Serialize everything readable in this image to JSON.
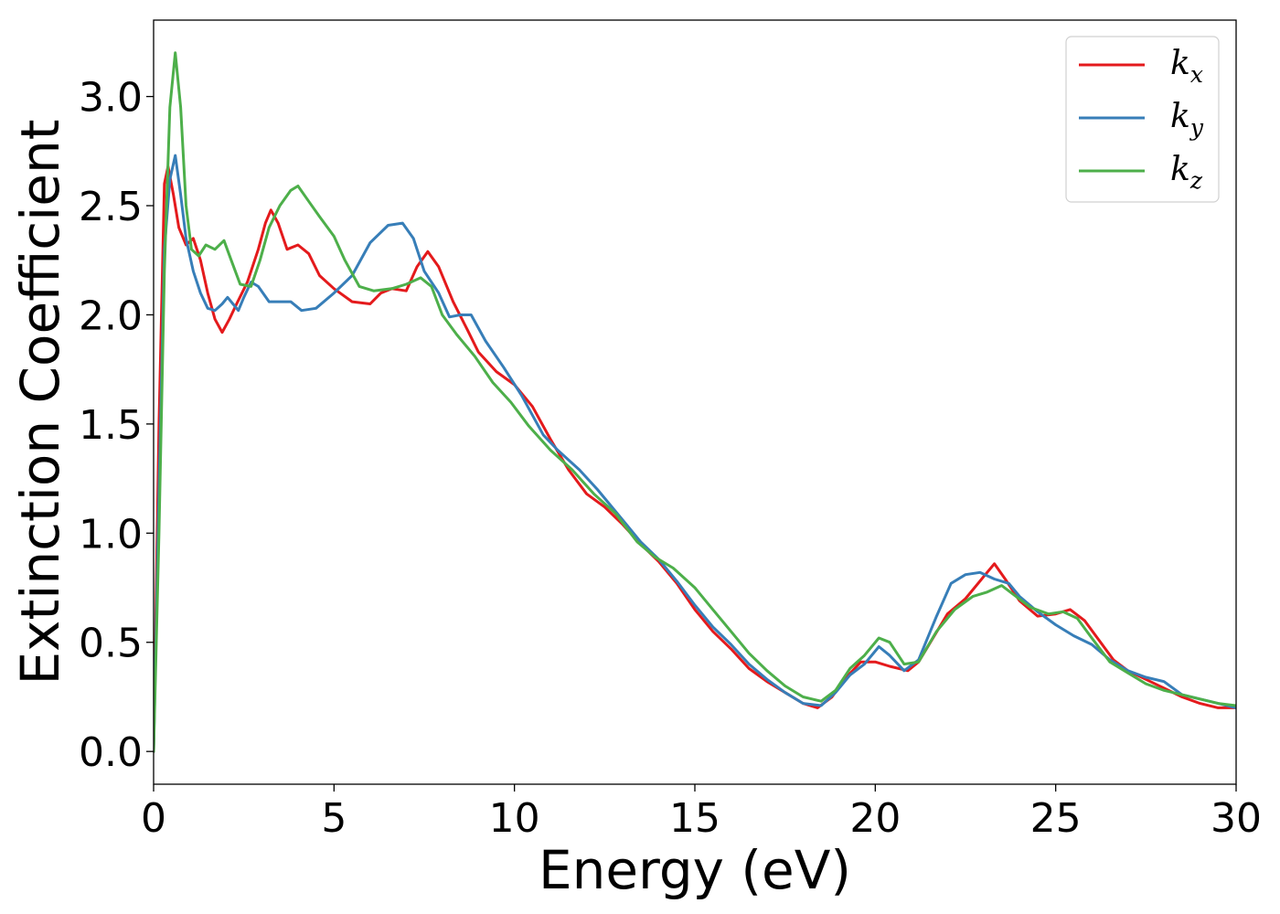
{
  "chart_data": {
    "type": "line",
    "xlabel": "Energy (eV)",
    "ylabel": "Extinction Coefficient",
    "xlim": [
      0,
      30
    ],
    "ylim": [
      -0.15,
      3.35
    ],
    "xticks": [
      0,
      5,
      10,
      15,
      20,
      25,
      30
    ],
    "xtick_labels": [
      "0",
      "5",
      "10",
      "15",
      "20",
      "25",
      "30"
    ],
    "yticks": [
      0.0,
      0.5,
      1.0,
      1.5,
      2.0,
      2.5,
      3.0
    ],
    "ytick_labels": [
      "0.0",
      "0.5",
      "1.0",
      "1.5",
      "2.0",
      "2.5",
      "3.0"
    ],
    "grid": false,
    "legend_position": "top-right",
    "series": [
      {
        "name": "k",
        "subscript": "x",
        "color": "#e41a1c",
        "points": [
          [
            0,
            0.0
          ],
          [
            0.15,
            1.5
          ],
          [
            0.3,
            2.6
          ],
          [
            0.4,
            2.68
          ],
          [
            0.55,
            2.55
          ],
          [
            0.7,
            2.4
          ],
          [
            0.9,
            2.32
          ],
          [
            1.1,
            2.35
          ],
          [
            1.3,
            2.25
          ],
          [
            1.5,
            2.1
          ],
          [
            1.7,
            1.98
          ],
          [
            1.9,
            1.92
          ],
          [
            2.1,
            1.98
          ],
          [
            2.3,
            2.05
          ],
          [
            2.6,
            2.15
          ],
          [
            2.9,
            2.3
          ],
          [
            3.1,
            2.42
          ],
          [
            3.25,
            2.48
          ],
          [
            3.45,
            2.42
          ],
          [
            3.7,
            2.3
          ],
          [
            4.0,
            2.32
          ],
          [
            4.3,
            2.28
          ],
          [
            4.6,
            2.18
          ],
          [
            5.0,
            2.12
          ],
          [
            5.5,
            2.06
          ],
          [
            6.0,
            2.05
          ],
          [
            6.3,
            2.1
          ],
          [
            6.6,
            2.12
          ],
          [
            7.0,
            2.11
          ],
          [
            7.3,
            2.22
          ],
          [
            7.6,
            2.29
          ],
          [
            7.9,
            2.22
          ],
          [
            8.3,
            2.06
          ],
          [
            8.7,
            1.93
          ],
          [
            9.0,
            1.83
          ],
          [
            9.5,
            1.74
          ],
          [
            10.0,
            1.68
          ],
          [
            10.5,
            1.58
          ],
          [
            11.0,
            1.43
          ],
          [
            11.5,
            1.29
          ],
          [
            12.0,
            1.18
          ],
          [
            12.5,
            1.12
          ],
          [
            13.0,
            1.04
          ],
          [
            13.5,
            0.95
          ],
          [
            14.0,
            0.87
          ],
          [
            14.5,
            0.77
          ],
          [
            15.0,
            0.65
          ],
          [
            15.5,
            0.55
          ],
          [
            16.0,
            0.47
          ],
          [
            16.5,
            0.38
          ],
          [
            17.0,
            0.32
          ],
          [
            17.5,
            0.27
          ],
          [
            18.0,
            0.22
          ],
          [
            18.4,
            0.2
          ],
          [
            18.8,
            0.25
          ],
          [
            19.2,
            0.34
          ],
          [
            19.6,
            0.41
          ],
          [
            20.0,
            0.41
          ],
          [
            20.4,
            0.39
          ],
          [
            20.9,
            0.37
          ],
          [
            21.2,
            0.41
          ],
          [
            21.6,
            0.52
          ],
          [
            22.0,
            0.63
          ],
          [
            22.5,
            0.7
          ],
          [
            23.0,
            0.8
          ],
          [
            23.3,
            0.86
          ],
          [
            23.6,
            0.79
          ],
          [
            24.0,
            0.69
          ],
          [
            24.5,
            0.62
          ],
          [
            25.0,
            0.63
          ],
          [
            25.4,
            0.65
          ],
          [
            25.8,
            0.6
          ],
          [
            26.2,
            0.51
          ],
          [
            26.6,
            0.42
          ],
          [
            27.0,
            0.37
          ],
          [
            27.5,
            0.33
          ],
          [
            28.0,
            0.29
          ],
          [
            28.5,
            0.25
          ],
          [
            29.0,
            0.22
          ],
          [
            29.5,
            0.2
          ],
          [
            30.0,
            0.2
          ]
        ]
      },
      {
        "name": "k",
        "subscript": "y",
        "color": "#377eb8",
        "points": [
          [
            0,
            0.0
          ],
          [
            0.15,
            1.2
          ],
          [
            0.3,
            2.3
          ],
          [
            0.45,
            2.62
          ],
          [
            0.6,
            2.73
          ],
          [
            0.75,
            2.55
          ],
          [
            0.9,
            2.35
          ],
          [
            1.1,
            2.2
          ],
          [
            1.3,
            2.1
          ],
          [
            1.5,
            2.03
          ],
          [
            1.7,
            2.02
          ],
          [
            1.9,
            2.05
          ],
          [
            2.05,
            2.08
          ],
          [
            2.2,
            2.05
          ],
          [
            2.35,
            2.02
          ],
          [
            2.5,
            2.08
          ],
          [
            2.7,
            2.15
          ],
          [
            2.9,
            2.13
          ],
          [
            3.2,
            2.06
          ],
          [
            3.5,
            2.06
          ],
          [
            3.8,
            2.06
          ],
          [
            4.1,
            2.02
          ],
          [
            4.5,
            2.03
          ],
          [
            5.0,
            2.1
          ],
          [
            5.5,
            2.18
          ],
          [
            6.0,
            2.33
          ],
          [
            6.5,
            2.41
          ],
          [
            6.9,
            2.42
          ],
          [
            7.2,
            2.35
          ],
          [
            7.5,
            2.2
          ],
          [
            7.9,
            2.1
          ],
          [
            8.2,
            1.99
          ],
          [
            8.5,
            2.0
          ],
          [
            8.8,
            2.0
          ],
          [
            9.2,
            1.88
          ],
          [
            9.7,
            1.76
          ],
          [
            10.2,
            1.63
          ],
          [
            10.8,
            1.45
          ],
          [
            11.2,
            1.38
          ],
          [
            11.8,
            1.29
          ],
          [
            12.3,
            1.2
          ],
          [
            13.0,
            1.06
          ],
          [
            13.5,
            0.96
          ],
          [
            14.0,
            0.88
          ],
          [
            14.5,
            0.78
          ],
          [
            15.0,
            0.67
          ],
          [
            15.5,
            0.57
          ],
          [
            16.0,
            0.49
          ],
          [
            16.5,
            0.4
          ],
          [
            17.0,
            0.33
          ],
          [
            17.5,
            0.27
          ],
          [
            18.0,
            0.22
          ],
          [
            18.5,
            0.21
          ],
          [
            18.9,
            0.27
          ],
          [
            19.3,
            0.35
          ],
          [
            19.7,
            0.4
          ],
          [
            20.1,
            0.48
          ],
          [
            20.4,
            0.44
          ],
          [
            20.8,
            0.37
          ],
          [
            21.2,
            0.42
          ],
          [
            21.7,
            0.62
          ],
          [
            22.1,
            0.77
          ],
          [
            22.5,
            0.81
          ],
          [
            22.9,
            0.82
          ],
          [
            23.3,
            0.79
          ],
          [
            23.7,
            0.77
          ],
          [
            24.0,
            0.71
          ],
          [
            24.5,
            0.64
          ],
          [
            25.0,
            0.58
          ],
          [
            25.5,
            0.53
          ],
          [
            26.0,
            0.49
          ],
          [
            26.5,
            0.42
          ],
          [
            27.0,
            0.37
          ],
          [
            27.5,
            0.34
          ],
          [
            28.0,
            0.32
          ],
          [
            28.5,
            0.26
          ],
          [
            29.0,
            0.24
          ],
          [
            29.5,
            0.22
          ],
          [
            30.0,
            0.2
          ]
        ]
      },
      {
        "name": "k",
        "subscript": "z",
        "color": "#4daf4a",
        "points": [
          [
            0,
            0.0
          ],
          [
            0.15,
            1.0
          ],
          [
            0.3,
            2.2
          ],
          [
            0.45,
            2.95
          ],
          [
            0.6,
            3.2
          ],
          [
            0.75,
            2.95
          ],
          [
            0.9,
            2.5
          ],
          [
            1.05,
            2.3
          ],
          [
            1.25,
            2.27
          ],
          [
            1.45,
            2.32
          ],
          [
            1.7,
            2.3
          ],
          [
            1.95,
            2.34
          ],
          [
            2.15,
            2.25
          ],
          [
            2.4,
            2.14
          ],
          [
            2.7,
            2.13
          ],
          [
            2.95,
            2.25
          ],
          [
            3.2,
            2.4
          ],
          [
            3.5,
            2.5
          ],
          [
            3.8,
            2.57
          ],
          [
            4.0,
            2.59
          ],
          [
            4.3,
            2.52
          ],
          [
            4.6,
            2.45
          ],
          [
            5.0,
            2.36
          ],
          [
            5.3,
            2.25
          ],
          [
            5.7,
            2.13
          ],
          [
            6.1,
            2.11
          ],
          [
            6.6,
            2.12
          ],
          [
            7.0,
            2.14
          ],
          [
            7.4,
            2.17
          ],
          [
            7.7,
            2.13
          ],
          [
            8.0,
            2.0
          ],
          [
            8.4,
            1.91
          ],
          [
            8.9,
            1.81
          ],
          [
            9.4,
            1.69
          ],
          [
            9.9,
            1.6
          ],
          [
            10.4,
            1.49
          ],
          [
            11.0,
            1.38
          ],
          [
            11.6,
            1.29
          ],
          [
            12.2,
            1.18
          ],
          [
            12.8,
            1.09
          ],
          [
            13.4,
            0.96
          ],
          [
            13.9,
            0.89
          ],
          [
            14.4,
            0.84
          ],
          [
            15.0,
            0.75
          ],
          [
            15.5,
            0.65
          ],
          [
            16.0,
            0.55
          ],
          [
            16.5,
            0.45
          ],
          [
            17.0,
            0.37
          ],
          [
            17.5,
            0.3
          ],
          [
            18.0,
            0.25
          ],
          [
            18.5,
            0.23
          ],
          [
            18.9,
            0.28
          ],
          [
            19.3,
            0.38
          ],
          [
            19.7,
            0.44
          ],
          [
            20.1,
            0.52
          ],
          [
            20.4,
            0.5
          ],
          [
            20.8,
            0.4
          ],
          [
            21.2,
            0.41
          ],
          [
            21.7,
            0.55
          ],
          [
            22.2,
            0.65
          ],
          [
            22.7,
            0.71
          ],
          [
            23.1,
            0.73
          ],
          [
            23.5,
            0.76
          ],
          [
            23.9,
            0.71
          ],
          [
            24.3,
            0.66
          ],
          [
            24.8,
            0.63
          ],
          [
            25.2,
            0.64
          ],
          [
            25.6,
            0.61
          ],
          [
            26.0,
            0.52
          ],
          [
            26.5,
            0.41
          ],
          [
            27.0,
            0.36
          ],
          [
            27.5,
            0.31
          ],
          [
            28.0,
            0.28
          ],
          [
            28.5,
            0.26
          ],
          [
            29.0,
            0.24
          ],
          [
            29.5,
            0.22
          ],
          [
            30.0,
            0.21
          ]
        ]
      }
    ]
  }
}
